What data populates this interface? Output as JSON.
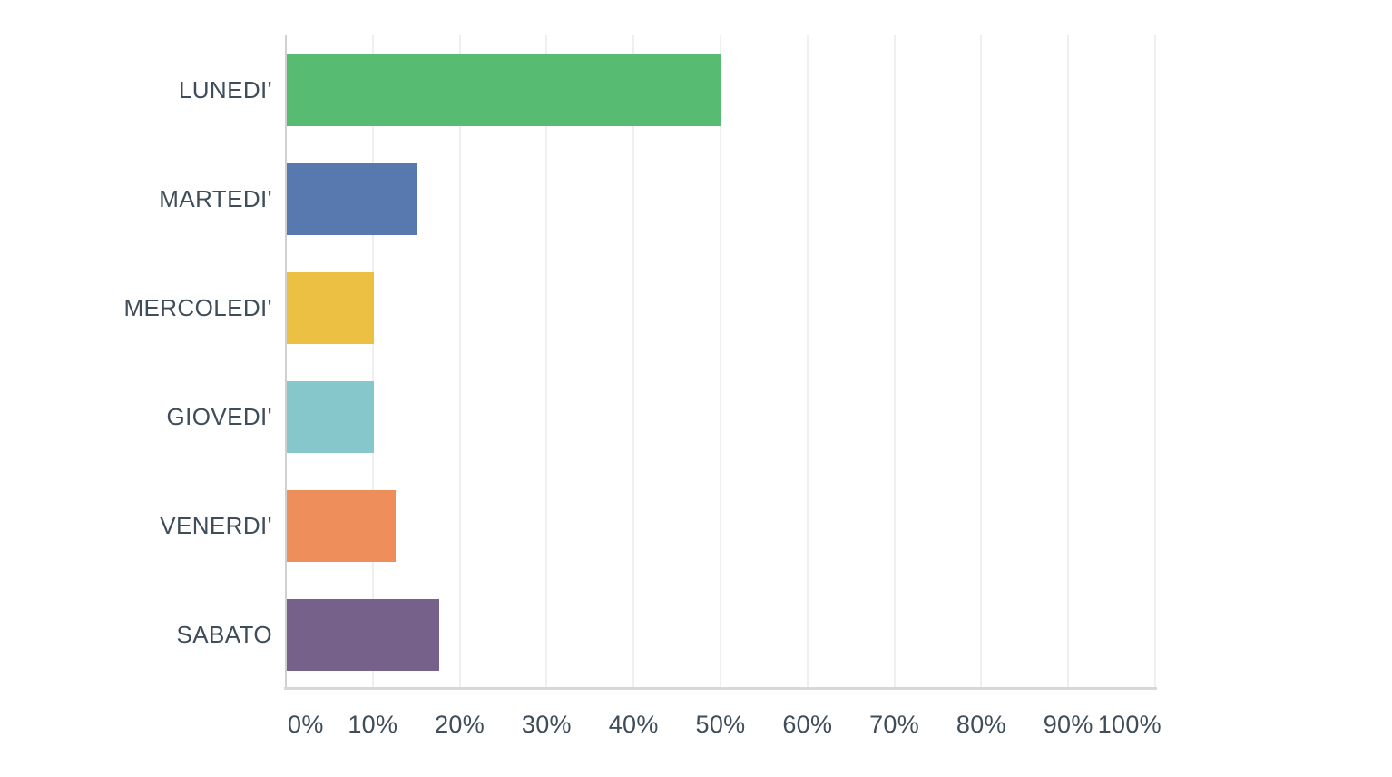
{
  "chart_data": {
    "type": "bar",
    "orientation": "horizontal",
    "title": "",
    "xlabel": "",
    "ylabel": "",
    "categories": [
      "LUNEDI'",
      "MARTEDI'",
      "MERCOLEDI'",
      "GIOVEDI'",
      "VENERDI'",
      "SABATO"
    ],
    "values": [
      50,
      15,
      10,
      10,
      12.5,
      17.5
    ],
    "value_unit": "%",
    "bar_colors": [
      "#57BB72",
      "#5779B0",
      "#ECC043",
      "#85C7CB",
      "#EE8F5B",
      "#75618A"
    ],
    "x_ticks": [
      "0%",
      "10%",
      "20%",
      "30%",
      "40%",
      "50%",
      "60%",
      "70%",
      "80%",
      "90%",
      "100%"
    ],
    "xlim": [
      0,
      100
    ],
    "grid": "vertical-only",
    "legend": "none",
    "colors": {
      "background": "#FFFFFF",
      "label_text": "#3F4D5A",
      "gridline": "#EFEFEF",
      "zero_axis_line": "#D0D0D0",
      "bottom_axis_line": "#D8D8D8"
    }
  }
}
